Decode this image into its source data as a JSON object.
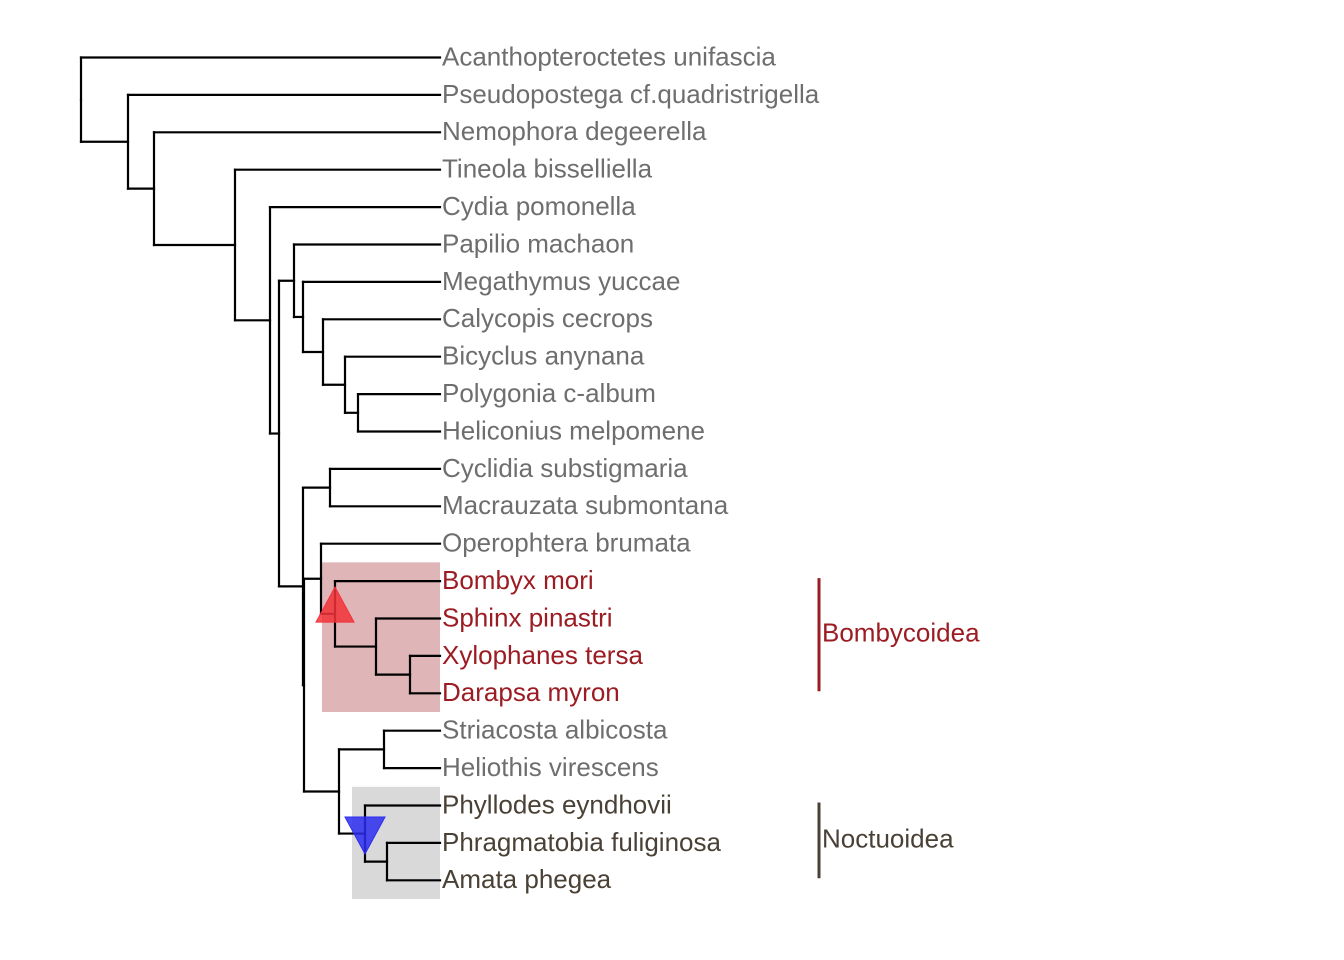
{
  "colors": {
    "default_label": "#6e6e6e",
    "bombycoidea": "#9b1c22",
    "noctuoidea": "#4a4136",
    "bombycoidea_highlight": "#dfb5b7",
    "noctuoidea_highlight": "#d9d9d9",
    "up_marker": "#f2333a",
    "down_marker": "#2c2cf0"
  },
  "taxa": [
    {
      "name": "Acanthopteroctetes unifascia",
      "group": "none"
    },
    {
      "name": "Pseudopostega cf.quadristrigella",
      "group": "none"
    },
    {
      "name": "Nemophora degeerella",
      "group": "none"
    },
    {
      "name": "Tineola bisselliella",
      "group": "none"
    },
    {
      "name": "Cydia pomonella",
      "group": "none"
    },
    {
      "name": "Papilio machaon",
      "group": "none"
    },
    {
      "name": "Megathymus yuccae",
      "group": "none"
    },
    {
      "name": "Calycopis cecrops",
      "group": "none"
    },
    {
      "name": "Bicyclus anynana",
      "group": "none"
    },
    {
      "name": "Polygonia c-album",
      "group": "none"
    },
    {
      "name": "Heliconius melpomene",
      "group": "none"
    },
    {
      "name": "Cyclidia substigmaria",
      "group": "none"
    },
    {
      "name": "Macrauzata submontana",
      "group": "none"
    },
    {
      "name": "Operophtera brumata",
      "group": "none"
    },
    {
      "name": "Bombyx mori",
      "group": "bombycoidea"
    },
    {
      "name": "Sphinx pinastri",
      "group": "bombycoidea"
    },
    {
      "name": "Xylophanes tersa",
      "group": "bombycoidea"
    },
    {
      "name": "Darapsa myron",
      "group": "bombycoidea"
    },
    {
      "name": "Striacosta albicosta",
      "group": "none"
    },
    {
      "name": "Heliothis virescens",
      "group": "none"
    },
    {
      "name": "Phyllodes eyndhovii",
      "group": "noctuoidea"
    },
    {
      "name": "Phragmatobia fuliginosa",
      "group": "noctuoidea"
    },
    {
      "name": "Amata phegea",
      "group": "noctuoidea"
    }
  ],
  "clades": [
    {
      "label": "Bombycoidea",
      "group": "bombycoidea",
      "first_tip": 14,
      "last_tip": 17,
      "marker": "up-triangle"
    },
    {
      "label": "Noctuoidea",
      "group": "noctuoidea",
      "first_tip": 20,
      "last_tip": 22,
      "marker": "down-triangle"
    }
  ]
}
